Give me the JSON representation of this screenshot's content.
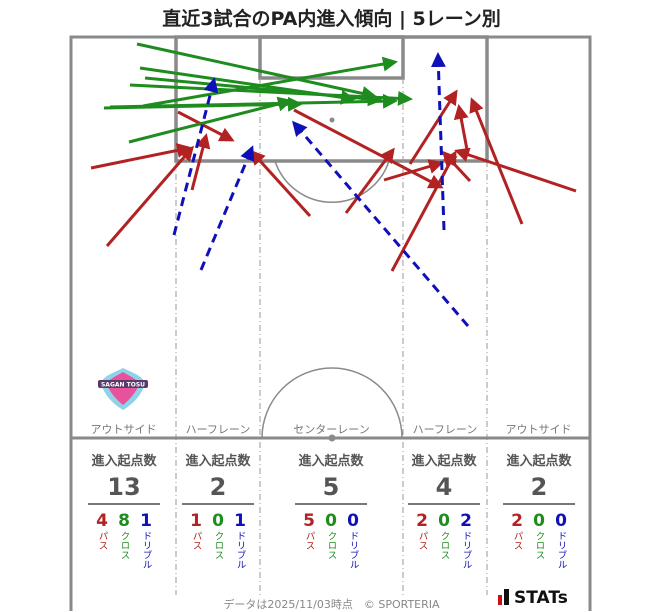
{
  "title": "直近3試合のPA内進入傾向 | 5レーン別",
  "lanes": [
    {
      "label": "アウトサイド",
      "header": "進入起点数",
      "total": "13",
      "pass": "4",
      "cross": "8",
      "dribble": "1"
    },
    {
      "label": "ハーフレーン",
      "header": "進入起点数",
      "total": "2",
      "pass": "1",
      "cross": "0",
      "dribble": "1"
    },
    {
      "label": "センターレーン",
      "header": "進入起点数",
      "total": "5",
      "pass": "5",
      "cross": "0",
      "dribble": "0"
    },
    {
      "label": "ハーフレーン",
      "header": "進入起点数",
      "total": "4",
      "pass": "2",
      "cross": "0",
      "dribble": "2"
    },
    {
      "label": "アウトサイド",
      "header": "進入起点数",
      "total": "2",
      "pass": "2",
      "cross": "0",
      "dribble": "0"
    }
  ],
  "type_labels": {
    "pass": "パス",
    "cross": "クロス",
    "dribble": "ドリブル"
  },
  "colors": {
    "pass": "#b22222",
    "cross": "#1e8c1e",
    "dribble": "#1010b8",
    "pitch_line": "#8a8a8a"
  },
  "footer": "データは2025/11/03時点　© SPORTERIA",
  "brand": "STATs",
  "logo_text": "SAGAN TOSU"
}
